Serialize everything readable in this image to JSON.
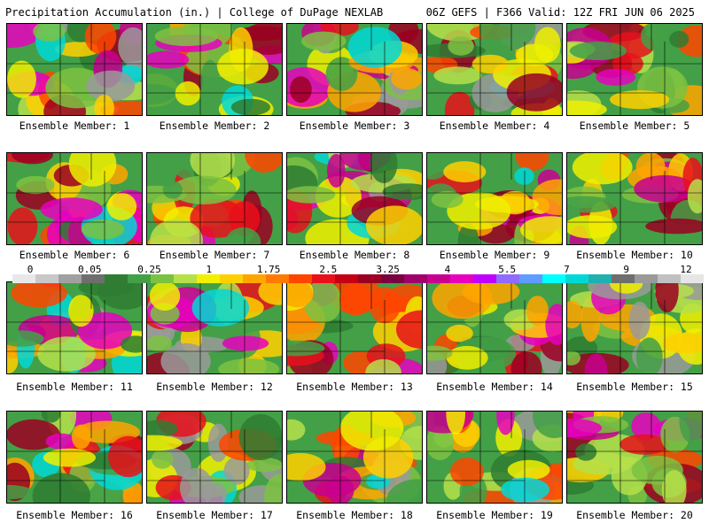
{
  "header": {
    "left": "Precipitation Accumulation (in.) | College of DuPage NEXLAB",
    "right": "06Z GEFS | F366 Valid: 12Z FRI JUN 06 2025"
  },
  "members": [
    {
      "label": "Ensemble Member: 1",
      "intensity": 0.55
    },
    {
      "label": "Ensemble Member: 2",
      "intensity": 0.45
    },
    {
      "label": "Ensemble Member: 3",
      "intensity": 0.7
    },
    {
      "label": "Ensemble Member: 4",
      "intensity": 0.5
    },
    {
      "label": "Ensemble Member: 5",
      "intensity": 0.3
    },
    {
      "label": "Ensemble Member: 6",
      "intensity": 0.4
    },
    {
      "label": "Ensemble Member: 7",
      "intensity": 0.3
    },
    {
      "label": "Ensemble Member: 8",
      "intensity": 0.65
    },
    {
      "label": "Ensemble Member: 9",
      "intensity": 0.45
    },
    {
      "label": "Ensemble Member: 10",
      "intensity": 0.35
    },
    {
      "label": "Ensemble Member: 11",
      "intensity": 0.45
    },
    {
      "label": "Ensemble Member: 12",
      "intensity": 0.55
    },
    {
      "label": "Ensemble Member: 13",
      "intensity": 0.35
    },
    {
      "label": "Ensemble Member: 14",
      "intensity": 0.6
    },
    {
      "label": "Ensemble Member: 15",
      "intensity": 0.7
    },
    {
      "label": "Ensemble Member: 16",
      "intensity": 0.45
    },
    {
      "label": "Ensemble Member: 17",
      "intensity": 0.65
    },
    {
      "label": "Ensemble Member: 18",
      "intensity": 0.6
    },
    {
      "label": "Ensemble Member: 19",
      "intensity": 0.6
    },
    {
      "label": "Ensemble Member: 20",
      "intensity": 0.35
    }
  ],
  "legend": {
    "ticks": [
      "0",
      "0.05",
      "0.25",
      "1",
      "1.75",
      "2.5",
      "3.25",
      "4",
      "5.5",
      "7",
      "9",
      "12"
    ],
    "colors": [
      "#e8e8e8",
      "#c8c8c8",
      "#a0a0a0",
      "#6e6e6e",
      "#2e7d32",
      "#43a047",
      "#7cc242",
      "#b5e04a",
      "#f0f000",
      "#ffd000",
      "#ffa500",
      "#ff7a00",
      "#ff4500",
      "#e8111b",
      "#c40015",
      "#9b0022",
      "#7a0040",
      "#a0006a",
      "#c8008f",
      "#e800c0",
      "#c000ff",
      "#8f6bff",
      "#5f9cff",
      "#00ffff",
      "#00d8d8",
      "#20b0b0",
      "#6e6e6e",
      "#9a9a9a",
      "#c0c0c0",
      "#e6e6e6"
    ]
  }
}
